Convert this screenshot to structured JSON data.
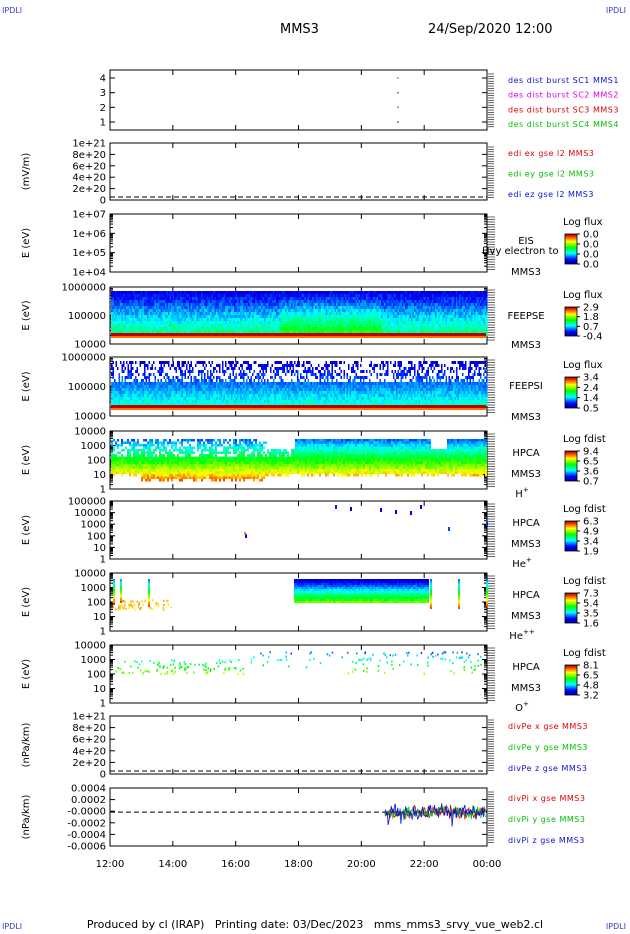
{
  "header": {
    "corner_label": "IPDLI",
    "spacecraft": "MMS3",
    "datetime": "24/Sep/2020 12:00"
  },
  "footer": {
    "produced_by": "Produced by cl (IRAP)",
    "printing_date": "Printing date: 03/Dec/2023",
    "filename": "mms_mms3_srvy_vue_web2.cl"
  },
  "time_axis": {
    "ticks": [
      "12:00",
      "14:00",
      "16:00",
      "18:00",
      "20:00",
      "22:00",
      "00:00"
    ],
    "start_hour": 12,
    "end_hour": 24
  },
  "colors": {
    "mms1": "#1010d0",
    "mms2": "#e000e0",
    "mms3": "#e00000",
    "mms4": "#00c000",
    "x": "#e00000",
    "y": "#00c000",
    "z": "#1010d0"
  },
  "chart_data": [
    {
      "type": "scatter",
      "id": "burst",
      "ylabel": "",
      "yticks": [
        "4",
        "3",
        "2",
        "1"
      ],
      "legend": [
        {
          "text": "des dist burst SC1 MMS1",
          "color": "#1010d0"
        },
        {
          "text": "des dist burst SC2 MMS2",
          "color": "#e000e0"
        },
        {
          "text": "des dist burst SC3 MMS3",
          "color": "#e00000"
        },
        {
          "text": "des dist burst SC4 MMS4",
          "color": "#00c000"
        }
      ],
      "series": [
        {
          "name": "des dist burst SC1 MMS1",
          "x": [
            "21:10"
          ],
          "y": [
            1
          ]
        },
        {
          "name": "des dist burst SC2 MMS2",
          "x": [
            "21:10"
          ],
          "y": [
            2
          ]
        },
        {
          "name": "des dist burst SC3 MMS3",
          "x": [
            "21:10"
          ],
          "y": [
            3
          ]
        },
        {
          "name": "des dist burst SC4 MMS4",
          "x": [
            "21:10"
          ],
          "y": [
            4
          ]
        }
      ]
    },
    {
      "type": "line",
      "id": "edi",
      "ylabel": "(mV/m)",
      "yticks": [
        "1e+21",
        "8e+20",
        "6e+20",
        "4e+20",
        "2e+20",
        "0"
      ],
      "legend": [
        {
          "text": "edi ex gse l2 MMS3",
          "color": "#e00000"
        },
        {
          "text": "edi ey gse l2 MMS3",
          "color": "#00c000"
        },
        {
          "text": "edi ez gse l2 MMS3",
          "color": "#1010d0"
        }
      ]
    },
    {
      "type": "heatmap",
      "id": "eis",
      "ylabel": "E (eV)",
      "yticks": [
        "1e+07",
        "1e+06",
        "1e+05",
        "1e+04"
      ],
      "instrument": [
        "EIS",
        "MMS3"
      ],
      "overlay_label": "Hvy electron to",
      "cb_title": "Log flux",
      "cb_ticks": [
        "0.0",
        "0.0",
        "0.0",
        "0.0"
      ]
    },
    {
      "type": "heatmap",
      "id": "feepse",
      "ylabel": "E (eV)",
      "yticks": [
        "1000000",
        "100000",
        "10000"
      ],
      "instrument": [
        "FEEPSE",
        "MMS3"
      ],
      "cb_title": "Log flux",
      "cb_ticks": [
        "2.9",
        "1.8",
        "0.7",
        "-0.4"
      ]
    },
    {
      "type": "heatmap",
      "id": "feepsi",
      "ylabel": "E (eV)",
      "yticks": [
        "1000000",
        "100000",
        "10000"
      ],
      "instrument": [
        "FEEPSI",
        "MMS3"
      ],
      "cb_title": "Log flux",
      "cb_ticks": [
        "3.4",
        "2.4",
        "1.4",
        "0.5"
      ]
    },
    {
      "type": "heatmap",
      "id": "hpca_h",
      "ylabel": "E (eV)",
      "yticks": [
        "10000",
        "1000",
        "100",
        "10",
        "1"
      ],
      "instrument": [
        "HPCA",
        "MMS3"
      ],
      "species": "H",
      "species_sup": "+",
      "cb_title": "Log fdist",
      "cb_ticks": [
        "9.4",
        "6.5",
        "3.6",
        "0.7"
      ]
    },
    {
      "type": "heatmap",
      "id": "hpca_he1",
      "ylabel": "E (eV)",
      "yticks": [
        "100000",
        "10000",
        "1000",
        "100",
        "10",
        "1"
      ],
      "instrument": [
        "HPCA",
        "MMS3"
      ],
      "species": "He",
      "species_sup": "+",
      "cb_title": "Log fdist",
      "cb_ticks": [
        "6.3",
        "4.9",
        "3.4",
        "1.9"
      ]
    },
    {
      "type": "heatmap",
      "id": "hpca_he2",
      "ylabel": "E (eV)",
      "yticks": [
        "10000",
        "1000",
        "100",
        "10",
        "1"
      ],
      "instrument": [
        "HPCA",
        "MMS3"
      ],
      "species": "He",
      "species_sup": "++",
      "cb_title": "Log fdist",
      "cb_ticks": [
        "7.3",
        "5.4",
        "3.5",
        "1.6"
      ]
    },
    {
      "type": "heatmap",
      "id": "hpca_o",
      "ylabel": "E (eV)",
      "yticks": [
        "10000",
        "1000",
        "100",
        "10",
        "1"
      ],
      "instrument": [
        "HPCA",
        "MMS3"
      ],
      "species": "O",
      "species_sup": "+",
      "cb_title": "Log fdist",
      "cb_ticks": [
        "8.1",
        "6.5",
        "4.8",
        "3.2"
      ]
    },
    {
      "type": "line",
      "id": "divpe",
      "ylabel": "(nPa/km)",
      "yticks": [
        "1e+21",
        "8e+20",
        "6e+20",
        "4e+20",
        "2e+20",
        "0"
      ],
      "legend": [
        {
          "text": "divPe x gse MMS3",
          "color": "#e00000"
        },
        {
          "text": "divPe y gse MMS3",
          "color": "#00c000"
        },
        {
          "text": "divPe z gse MMS3",
          "color": "#1010d0"
        }
      ]
    },
    {
      "type": "line",
      "id": "divpi",
      "ylabel": "(nPa/km)",
      "yticks": [
        "0.0004",
        "0.0002",
        "-0.0000",
        "-0.0002",
        "-0.0004",
        "-0.0006"
      ],
      "ylim": [
        -0.0007,
        0.0005
      ],
      "legend": [
        {
          "text": "divPi x gse MMS3",
          "color": "#e00000"
        },
        {
          "text": "divPi y gse MMS3",
          "color": "#00c000"
        },
        {
          "text": "divPi z gse MMS3",
          "color": "#1010d0"
        }
      ],
      "data_start": "20:45",
      "data_end": "00:00"
    }
  ]
}
